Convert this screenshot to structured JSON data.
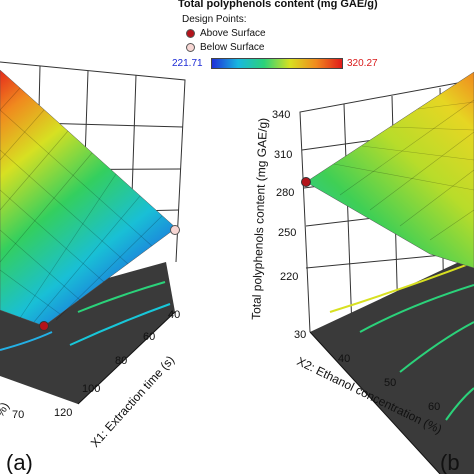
{
  "legend": {
    "title": "Total polyphenols content (mg GAE/g)",
    "subtitle": "Design Points:",
    "above_label": "Above Surface",
    "below_label": "Below Surface",
    "range_min": "221.71",
    "range_max": "320.27",
    "ramp_colors": [
      "#1f2fd8",
      "#18b7e0",
      "#2bd27a",
      "#d8e021",
      "#f08a1e",
      "#e11a1a"
    ],
    "above_color": "#b3141b",
    "below_color": "#f7d6d3"
  },
  "chart_data": [
    {
      "type": "surface3d",
      "panel_label": "(a)",
      "x1_label": "X1: Extraction time (s)",
      "x1_ticks": [
        "40",
        "60",
        "80",
        "100",
        "120"
      ],
      "x2_ticks_visible": [
        "70"
      ],
      "x2_partial_label": "%)",
      "zlim": [
        221.71,
        320.27
      ]
    },
    {
      "type": "surface3d",
      "panel_label": "(b",
      "zlabel": "Total polyphenols content (mg GAE/g)",
      "z_ticks": [
        "220",
        "250",
        "280",
        "310",
        "340"
      ],
      "x2_label": "X2: Ethanol concentration (%)",
      "x2_ticks": [
        "30",
        "40",
        "50",
        "60"
      ],
      "design_point_value": 280,
      "zlim": [
        220,
        340
      ]
    }
  ]
}
